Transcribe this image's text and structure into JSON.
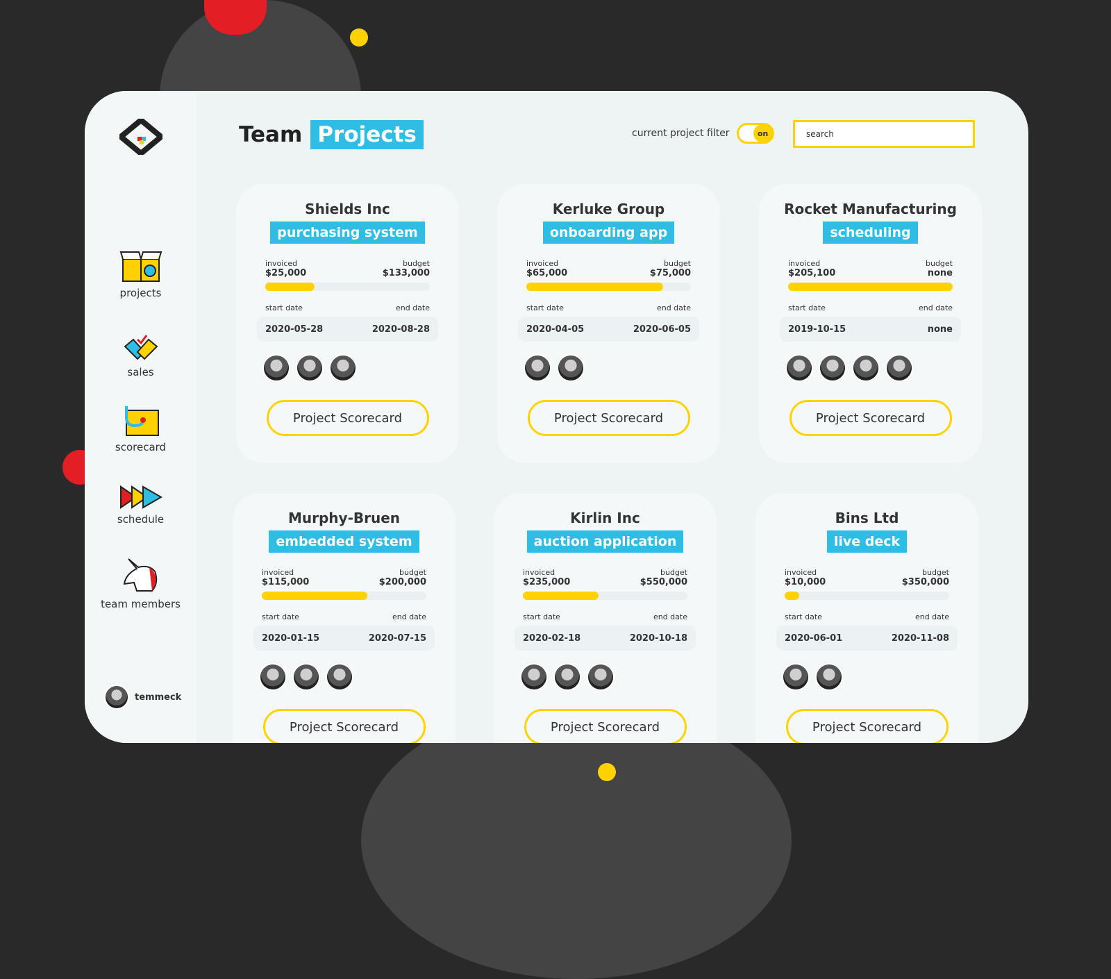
{
  "app": {
    "title_a": "Team",
    "title_b": "Projects"
  },
  "colors": {
    "accent_blue": "#2fbde3",
    "accent_yellow": "#ffd200",
    "background": "#2a2929"
  },
  "filter": {
    "label": "current project filter",
    "toggle": "on",
    "toggle_state": true
  },
  "search": {
    "placeholder": "search"
  },
  "sidebar": {
    "items": [
      {
        "label": "projects",
        "icon": "box-icon",
        "active": true
      },
      {
        "label": "sales",
        "icon": "handshake-icon"
      },
      {
        "label": "scorecard",
        "icon": "stethoscope-icon"
      },
      {
        "label": "schedule",
        "icon": "arrows-icon"
      },
      {
        "label": "team members",
        "icon": "unicorn-icon"
      }
    ],
    "user": "temmeck"
  },
  "labels": {
    "invoiced": "invoiced",
    "budget": "budget",
    "start": "start date",
    "end": "end date",
    "button": "Project Scorecard"
  },
  "cards": [
    {
      "company": "Shields Inc",
      "project": "purchasing system",
      "invoiced": "$25,000",
      "budget": "$133,000",
      "progress": 0.3,
      "start": "2020-05-28",
      "end": "2020-08-28",
      "members": 3
    },
    {
      "company": "Kerluke Group",
      "project": "onboarding app",
      "invoiced": "$65,000",
      "budget": "$75,000",
      "progress": 0.83,
      "start": "2020-04-05",
      "end": "2020-06-05",
      "members": 2
    },
    {
      "company": "Rocket Manufacturing",
      "project": "scheduling",
      "invoiced": "$205,100",
      "budget": "none",
      "progress": 1.0,
      "start": "2019-10-15",
      "end": "none",
      "members": 4
    },
    {
      "company": "Murphy-Bruen",
      "project": "embedded system",
      "invoiced": "$115,000",
      "budget": "$200,000",
      "progress": 0.64,
      "start": "2020-01-15",
      "end": "2020-07-15",
      "members": 3
    },
    {
      "company": "Kirlin Inc",
      "project": "auction application",
      "invoiced": "$235,000",
      "budget": "$550,000",
      "progress": 0.46,
      "start": "2020-02-18",
      "end": "2020-10-18",
      "members": 3
    },
    {
      "company": "Bins Ltd",
      "project": "live deck",
      "invoiced": "$10,000",
      "budget": "$350,000",
      "progress": 0.09,
      "start": "2020-06-01",
      "end": "2020-11-08",
      "members": 2
    }
  ]
}
